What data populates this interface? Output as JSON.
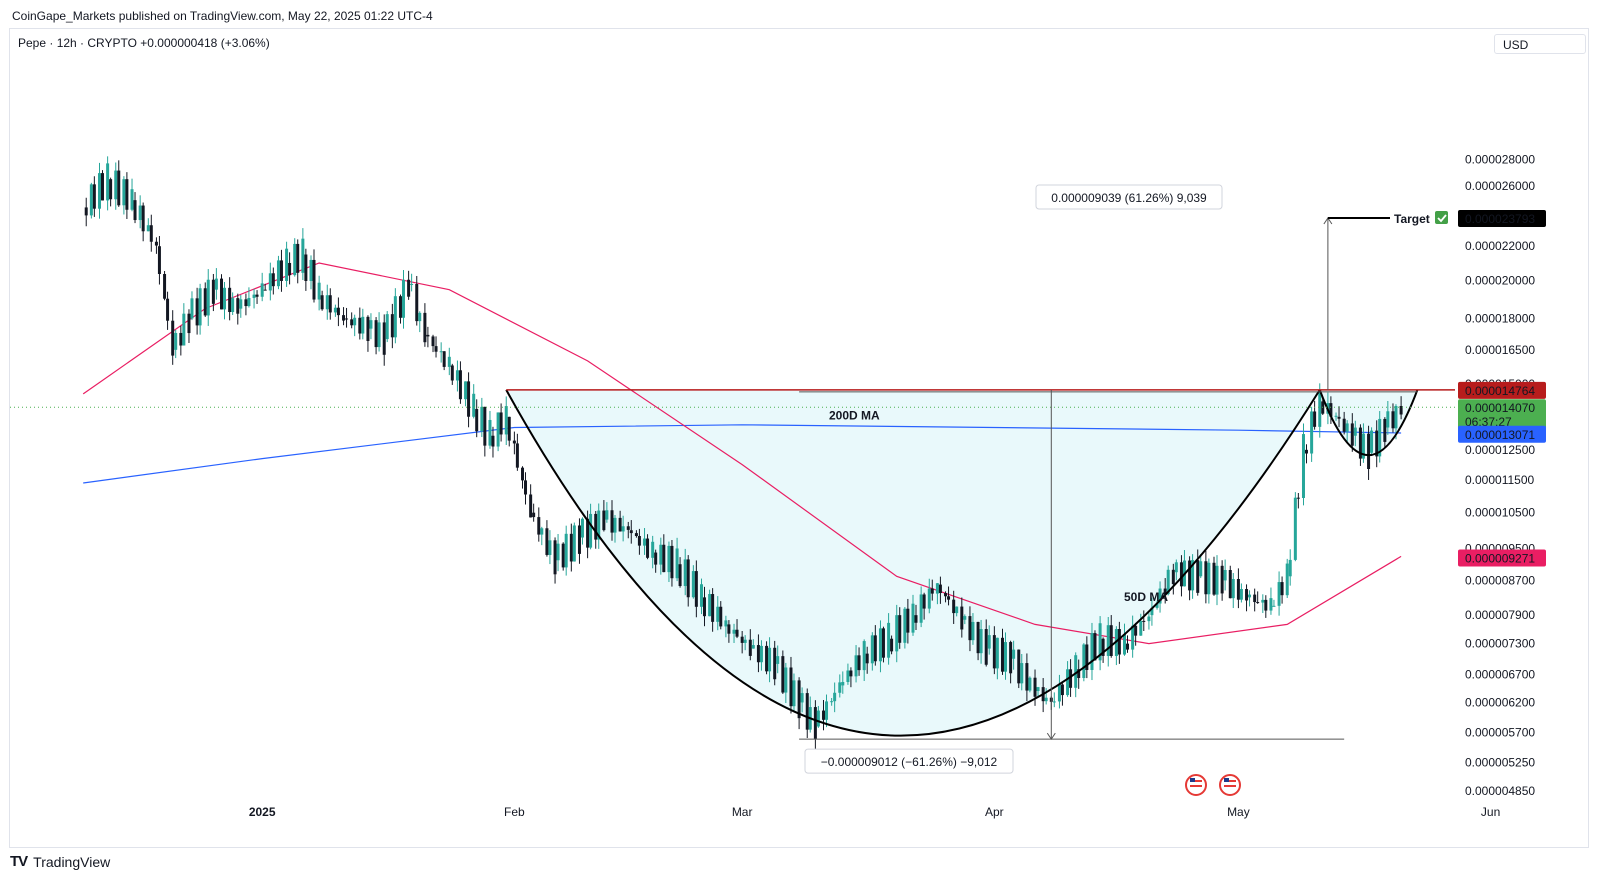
{
  "publisher_line": "CoinGape_Markets published on TradingView.com, May 22, 2025 01:22 UTC-4",
  "symbol_line": "Pepe · 12h · CRYPTO  +0.000000418 (+3.06%)",
  "currency": "USD",
  "footer_brand": "TradingView",
  "colors": {
    "up_candle": "#26a69a",
    "down_candle": "#131722",
    "ma50": "#e91e63",
    "ma200": "#2962ff",
    "resistance": "#b71c1c",
    "cup_fill": "#e0f7fa",
    "price_tag": "#4caf50",
    "target_tag": "#000000"
  },
  "chart_data": {
    "type": "candlestick",
    "interval": "12h",
    "y_scale": "log",
    "ylim": [
      4.4e-06,
      3.08e-05
    ],
    "y_ticks": [
      "0.000028000",
      "0.000026000",
      "0.000022000",
      "0.000020000",
      "0.000018000",
      "0.000016500",
      "0.000015000",
      "0.000013071",
      "0.000012500",
      "0.000011500",
      "0.000010500",
      "0.000009500",
      "0.000008700",
      "0.000007900",
      "0.000007300",
      "0.000006700",
      "0.000006200",
      "0.000005700",
      "0.000005250",
      "0.000004850"
    ],
    "x_ticks": [
      "2025",
      "Feb",
      "Mar",
      "Apr",
      "May",
      "Jun"
    ],
    "close_series": [
      {
        "date": "2024-12-10",
        "close": 2.45e-05
      },
      {
        "date": "2024-12-13",
        "close": 2.65e-05
      },
      {
        "date": "2024-12-16",
        "close": 2.5e-05
      },
      {
        "date": "2024-12-19",
        "close": 2.2e-05
      },
      {
        "date": "2024-12-21",
        "close": 1.65e-05
      },
      {
        "date": "2024-12-23",
        "close": 1.8e-05
      },
      {
        "date": "2024-12-26",
        "close": 1.95e-05
      },
      {
        "date": "2024-12-29",
        "close": 1.85e-05
      },
      {
        "date": "2025-01-01",
        "close": 1.95e-05
      },
      {
        "date": "2025-01-04",
        "close": 2.1e-05
      },
      {
        "date": "2025-01-06",
        "close": 2.15e-05
      },
      {
        "date": "2025-01-08",
        "close": 1.92e-05
      },
      {
        "date": "2025-01-11",
        "close": 1.8e-05
      },
      {
        "date": "2025-01-14",
        "close": 1.75e-05
      },
      {
        "date": "2025-01-16",
        "close": 1.7e-05
      },
      {
        "date": "2025-01-19",
        "close": 1.98e-05
      },
      {
        "date": "2025-01-21",
        "close": 1.72e-05
      },
      {
        "date": "2025-01-24",
        "close": 1.58e-05
      },
      {
        "date": "2025-01-27",
        "close": 1.4e-05
      },
      {
        "date": "2025-01-29",
        "close": 1.3e-05
      },
      {
        "date": "2025-01-31",
        "close": 1.37e-05
      },
      {
        "date": "2025-02-03",
        "close": 1.05e-05
      },
      {
        "date": "2025-02-06",
        "close": 9.2e-06
      },
      {
        "date": "2025-02-09",
        "close": 9.8e-06
      },
      {
        "date": "2025-02-12",
        "close": 1.03e-05
      },
      {
        "date": "2025-02-15",
        "close": 1e-05
      },
      {
        "date": "2025-02-18",
        "close": 9.4e-06
      },
      {
        "date": "2025-02-21",
        "close": 9.1e-06
      },
      {
        "date": "2025-02-24",
        "close": 8.3e-06
      },
      {
        "date": "2025-02-27",
        "close": 7.7e-06
      },
      {
        "date": "2025-03-02",
        "close": 7.2e-06
      },
      {
        "date": "2025-03-05",
        "close": 6.9e-06
      },
      {
        "date": "2025-03-08",
        "close": 6.2e-06
      },
      {
        "date": "2025-03-10",
        "close": 5.8e-06
      },
      {
        "date": "2025-03-13",
        "close": 6.5e-06
      },
      {
        "date": "2025-03-16",
        "close": 7.1e-06
      },
      {
        "date": "2025-03-19",
        "close": 7.4e-06
      },
      {
        "date": "2025-03-22",
        "close": 7.9e-06
      },
      {
        "date": "2025-03-25",
        "close": 8.6e-06
      },
      {
        "date": "2025-03-28",
        "close": 7.8e-06
      },
      {
        "date": "2025-03-31",
        "close": 7.2e-06
      },
      {
        "date": "2025-04-03",
        "close": 7e-06
      },
      {
        "date": "2025-04-06",
        "close": 6.4e-06
      },
      {
        "date": "2025-04-08",
        "close": 6.2e-06
      },
      {
        "date": "2025-04-11",
        "close": 6.8e-06
      },
      {
        "date": "2025-04-14",
        "close": 7.4e-06
      },
      {
        "date": "2025-04-17",
        "close": 7.3e-06
      },
      {
        "date": "2025-04-20",
        "close": 7.9e-06
      },
      {
        "date": "2025-04-23",
        "close": 8.9e-06
      },
      {
        "date": "2025-04-26",
        "close": 8.8e-06
      },
      {
        "date": "2025-04-29",
        "close": 8.7e-06
      },
      {
        "date": "2025-05-02",
        "close": 8.3e-06
      },
      {
        "date": "2025-05-05",
        "close": 8.1e-06
      },
      {
        "date": "2025-05-07",
        "close": 8.8e-06
      },
      {
        "date": "2025-05-09",
        "close": 1.25e-05
      },
      {
        "date": "2025-05-11",
        "close": 1.43e-05
      },
      {
        "date": "2025-05-13",
        "close": 1.37e-05
      },
      {
        "date": "2025-05-15",
        "close": 1.3e-05
      },
      {
        "date": "2025-05-17",
        "close": 1.24e-05
      },
      {
        "date": "2025-05-19",
        "close": 1.33e-05
      },
      {
        "date": "2025-05-21",
        "close": 1.4e-05
      }
    ],
    "ma200": [
      {
        "date": "2024-12-10",
        "value": 1.14e-05
      },
      {
        "date": "2025-01-01",
        "value": 1.22e-05
      },
      {
        "date": "2025-02-01",
        "value": 1.33e-05
      },
      {
        "date": "2025-03-01",
        "value": 1.34e-05
      },
      {
        "date": "2025-04-01",
        "value": 1.33e-05
      },
      {
        "date": "2025-05-01",
        "value": 1.32e-05
      },
      {
        "date": "2025-05-21",
        "value": 1.31e-05
      }
    ],
    "ma50": [
      {
        "date": "2024-12-10",
        "value": 1.46e-05
      },
      {
        "date": "2024-12-25",
        "value": 1.85e-05
      },
      {
        "date": "2025-01-08",
        "value": 2.1e-05
      },
      {
        "date": "2025-01-24",
        "value": 1.95e-05
      },
      {
        "date": "2025-02-10",
        "value": 1.6e-05
      },
      {
        "date": "2025-03-01",
        "value": 1.2e-05
      },
      {
        "date": "2025-03-20",
        "value": 8.8e-06
      },
      {
        "date": "2025-04-06",
        "value": 7.7e-06
      },
      {
        "date": "2025-04-20",
        "value": 7.3e-06
      },
      {
        "date": "2025-05-07",
        "value": 7.7e-06
      },
      {
        "date": "2025-05-21",
        "value": 9.3e-06
      }
    ],
    "resistance_level": 1.4764e-05,
    "cup_bottom": 5.6e-06,
    "labels": {
      "ma200": "200D MA",
      "ma50": "50D MA",
      "target": "Target",
      "measure_up": "0.000009039 (61.26%) 9,039",
      "measure_down": "−0.000009012 (−61.26%) −9,012"
    },
    "price_tags": {
      "target": "0.000023793",
      "resistance": "0.000014764",
      "price": "0.000014070",
      "countdown": "06:37:27",
      "ma200": "0.000013071",
      "ma50": "0.000009271"
    }
  }
}
